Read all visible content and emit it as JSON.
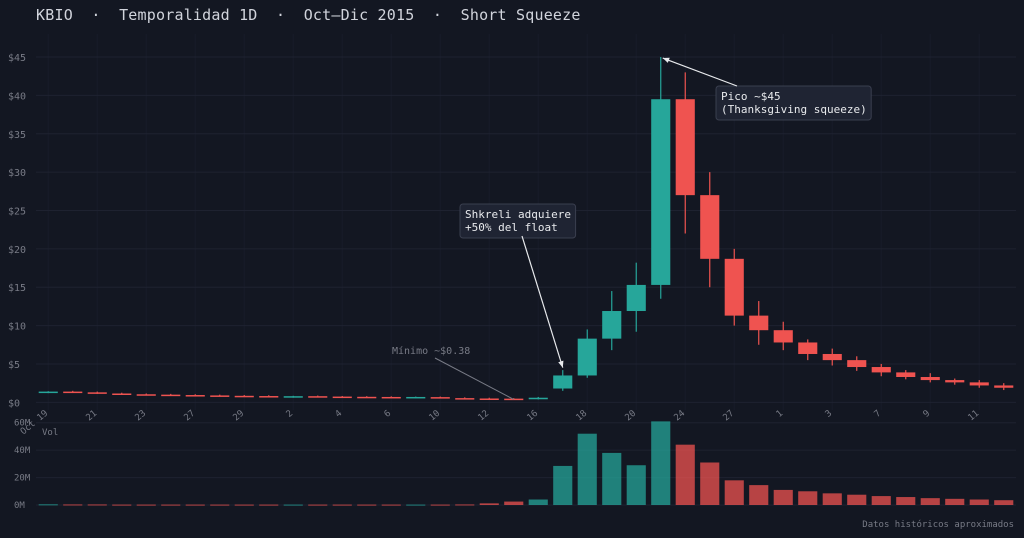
{
  "title": "KBIO  ·  Temporalidad 1D  ·  Oct–Dic 2015  ·  Short Squeeze",
  "footer": "Datos históricos aproximados",
  "colors": {
    "background": "#131722",
    "up": "#26a69a",
    "down": "#ef5350",
    "grid": "#1e2230",
    "axis_text": "#787b86",
    "annotation_bg": "#1f2433",
    "annotation_border": "#3a3f4f"
  },
  "chart_data": [
    {
      "type": "candlestick",
      "title": "",
      "y_tick_labels": [
        "$0",
        "$5",
        "$10",
        "$15",
        "$20",
        "$25",
        "$30",
        "$35",
        "$40",
        "$45"
      ],
      "ylim": [
        -1,
        48
      ],
      "grid": true,
      "x_tick_labels": [
        "Oct 19",
        "21",
        "23",
        "27",
        "29",
        "2",
        "4",
        "6",
        "10",
        "12",
        "16",
        "18",
        "20",
        "24",
        "27",
        "1",
        "3",
        "7",
        "9",
        "11"
      ],
      "candles": [
        {
          "o": 1.3,
          "h": 1.45,
          "l": 1.2,
          "c": 1.4
        },
        {
          "o": 1.4,
          "h": 1.5,
          "l": 1.25,
          "c": 1.3
        },
        {
          "o": 1.3,
          "h": 1.4,
          "l": 1.1,
          "c": 1.15
        },
        {
          "o": 1.15,
          "h": 1.25,
          "l": 1.0,
          "c": 1.05
        },
        {
          "o": 1.05,
          "h": 1.15,
          "l": 0.95,
          "c": 1.0
        },
        {
          "o": 1.0,
          "h": 1.1,
          "l": 0.9,
          "c": 0.95
        },
        {
          "o": 0.95,
          "h": 1.05,
          "l": 0.85,
          "c": 0.9
        },
        {
          "o": 0.9,
          "h": 1.0,
          "l": 0.8,
          "c": 0.85
        },
        {
          "o": 0.85,
          "h": 0.95,
          "l": 0.78,
          "c": 0.82
        },
        {
          "o": 0.82,
          "h": 0.92,
          "l": 0.75,
          "c": 0.8
        },
        {
          "o": 0.75,
          "h": 0.85,
          "l": 0.6,
          "c": 0.8
        },
        {
          "o": 0.8,
          "h": 0.88,
          "l": 0.7,
          "c": 0.75
        },
        {
          "o": 0.75,
          "h": 0.82,
          "l": 0.65,
          "c": 0.72
        },
        {
          "o": 0.72,
          "h": 0.8,
          "l": 0.62,
          "c": 0.7
        },
        {
          "o": 0.7,
          "h": 0.78,
          "l": 0.6,
          "c": 0.68
        },
        {
          "o": 0.62,
          "h": 0.75,
          "l": 0.55,
          "c": 0.7
        },
        {
          "o": 0.68,
          "h": 0.75,
          "l": 0.5,
          "c": 0.55
        },
        {
          "o": 0.55,
          "h": 0.65,
          "l": 0.45,
          "c": 0.5
        },
        {
          "o": 0.5,
          "h": 0.6,
          "l": 0.4,
          "c": 0.48
        },
        {
          "o": 0.48,
          "h": 0.55,
          "l": 0.38,
          "c": 0.45
        },
        {
          "o": 0.4,
          "h": 0.7,
          "l": 0.38,
          "c": 0.6
        },
        {
          "o": 1.8,
          "h": 4.2,
          "l": 1.5,
          "c": 3.5
        },
        {
          "o": 3.5,
          "h": 9.5,
          "l": 3.2,
          "c": 8.3
        },
        {
          "o": 8.3,
          "h": 14.5,
          "l": 6.8,
          "c": 11.9
        },
        {
          "o": 11.9,
          "h": 18.2,
          "l": 9.2,
          "c": 15.3
        },
        {
          "o": 15.3,
          "h": 45.0,
          "l": 13.5,
          "c": 39.5
        },
        {
          "o": 39.5,
          "h": 43.0,
          "l": 22.0,
          "c": 27.0
        },
        {
          "o": 27.0,
          "h": 30.0,
          "l": 15.0,
          "c": 18.7
        },
        {
          "o": 18.7,
          "h": 20.0,
          "l": 10.0,
          "c": 11.3
        },
        {
          "o": 11.3,
          "h": 13.2,
          "l": 7.5,
          "c": 9.4
        },
        {
          "o": 9.4,
          "h": 10.5,
          "l": 6.8,
          "c": 7.8
        },
        {
          "o": 7.8,
          "h": 8.2,
          "l": 5.5,
          "c": 6.3
        },
        {
          "o": 6.3,
          "h": 7.0,
          "l": 4.8,
          "c": 5.5
        },
        {
          "o": 5.5,
          "h": 6.0,
          "l": 4.1,
          "c": 4.6
        },
        {
          "o": 4.6,
          "h": 5.0,
          "l": 3.4,
          "c": 3.9
        },
        {
          "o": 3.9,
          "h": 4.2,
          "l": 3.0,
          "c": 3.3
        },
        {
          "o": 3.3,
          "h": 3.8,
          "l": 2.6,
          "c": 2.9
        },
        {
          "o": 2.9,
          "h": 3.1,
          "l": 2.3,
          "c": 2.6
        },
        {
          "o": 2.6,
          "h": 2.9,
          "l": 1.9,
          "c": 2.2
        },
        {
          "o": 2.2,
          "h": 2.5,
          "l": 1.6,
          "c": 1.9
        }
      ],
      "annotations": [
        {
          "text": [
            "Pico ~$45",
            "(Thanksgiving squeeze)"
          ],
          "target_index": 25,
          "target_value": 45.0
        },
        {
          "text": [
            "Shkreli adquiere",
            "+50% del float"
          ],
          "target_index": 21,
          "target_value": 4.0
        },
        {
          "text": [
            "Mínimo ~$0.38"
          ],
          "target_index": 19,
          "target_value": 0.38
        }
      ]
    },
    {
      "type": "bar",
      "label": "Vol",
      "y_tick_labels": [
        "0M",
        "20M",
        "40M",
        "60M"
      ],
      "ylim": [
        0,
        62
      ],
      "unit": "M",
      "values": [
        0.5,
        0.4,
        0.4,
        0.3,
        0.3,
        0.3,
        0.3,
        0.3,
        0.3,
        0.3,
        0.3,
        0.3,
        0.3,
        0.3,
        0.3,
        0.3,
        0.3,
        0.4,
        1.2,
        2.5,
        4.0,
        28.5,
        52.0,
        38.0,
        29.0,
        61.0,
        44.0,
        31.0,
        18.0,
        14.5,
        11.0,
        10.0,
        8.5,
        7.5,
        6.5,
        5.8,
        5.0,
        4.5,
        4.0,
        3.5
      ]
    }
  ]
}
